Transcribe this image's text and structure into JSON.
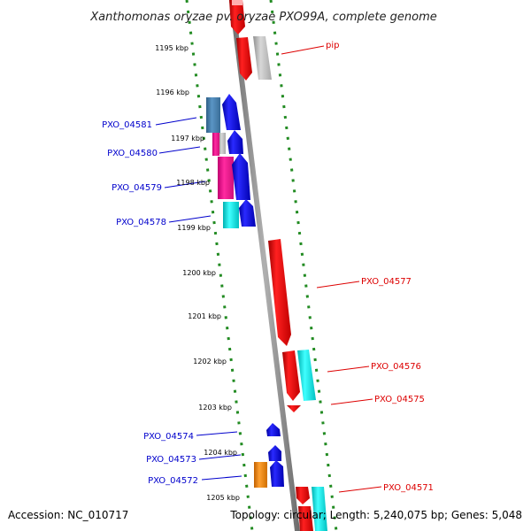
{
  "title": "Xanthomonas oryzae pv. oryzae PXO99A, complete genome",
  "footer": {
    "accession": "Accession: NC_010717",
    "topology": "Topology: circular; Length: 5,240,075 bp; Genes: 5,048"
  },
  "ticks": [
    "1195 kbp",
    "1196 kbp",
    "1197 kbp",
    "1198 kbp",
    "1199 kbp",
    "1200 kbp",
    "1201 kbp",
    "1202 kbp",
    "1203 kbp",
    "1204 kbp",
    "1205 kbp"
  ],
  "genes_left": [
    "PXO_04581",
    "PXO_04580",
    "PXO_04579",
    "PXO_04578",
    "PXO_04574",
    "PXO_04573",
    "PXO_04572"
  ],
  "genes_right": [
    "pip",
    "PXO_04577",
    "PXO_04576",
    "PXO_04575",
    "PXO_04571"
  ],
  "colors": {
    "forward_strand": "#0000ee",
    "reverse_strand": "#ee0000",
    "backbone": "#888888",
    "tick_dots": "#228b22",
    "steelblue_feature": "#4682b4",
    "pink_feature": "#ff1493",
    "cyan_feature": "#00ffff",
    "silver_feature": "#c0c0c0",
    "orange_feature": "#ff8c00"
  }
}
